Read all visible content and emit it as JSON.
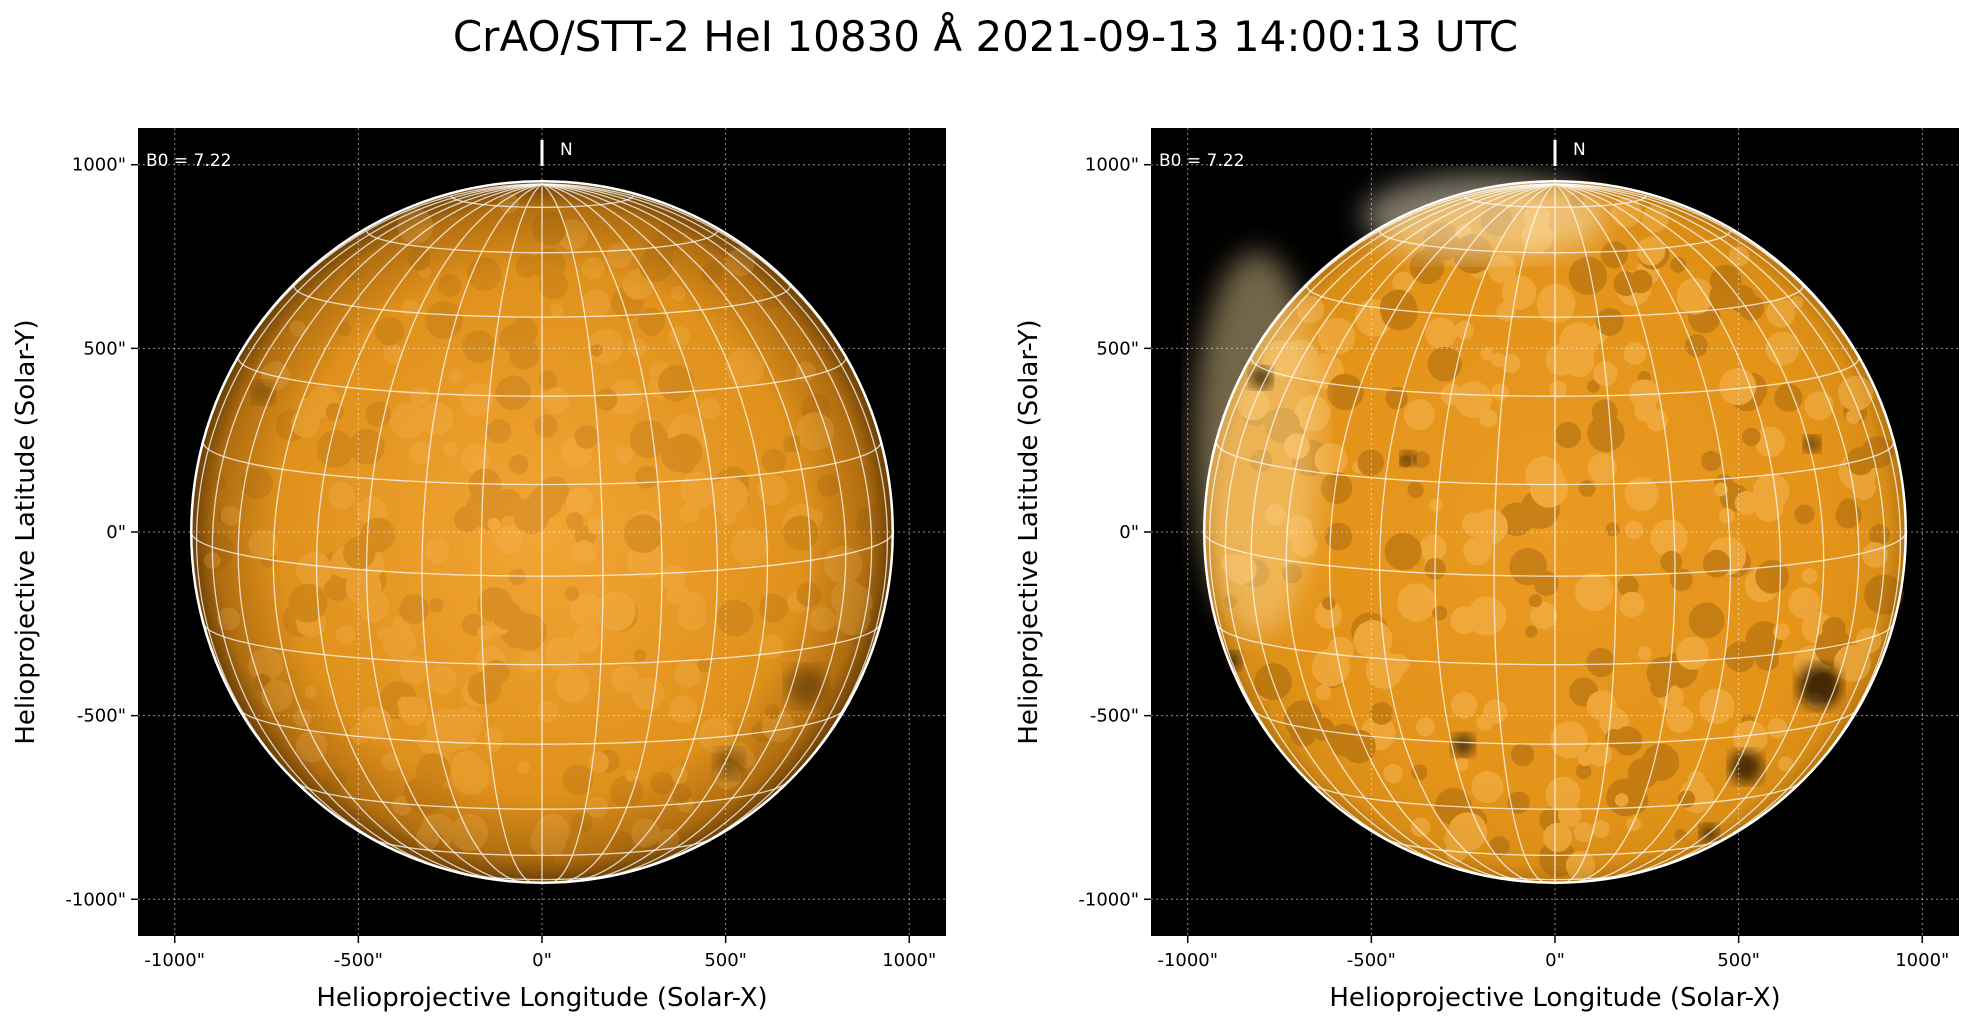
{
  "figure": {
    "title": "CrAO/STT-2 HeI 10830 Å 2021-09-13 14:00:13 UTC"
  },
  "panels": [
    {
      "name": "left",
      "b0_label": "B0 = 7.22",
      "north_label": "N",
      "x_axis_label": "Helioprojective Longitude (Solar-X)",
      "y_axis_label": "Helioprojective Latitude (Solar-Y)",
      "x_ticks": [
        "-1000\"",
        "-500\"",
        "0\"",
        "500\"",
        "1000\""
      ],
      "y_ticks": [
        "1000\"",
        "500\"",
        "0\"",
        "-500\"",
        "-1000\""
      ],
      "disk_color": "#e8991a",
      "dark_features": [
        {
          "x": 720,
          "y": -420,
          "r": 55
        },
        {
          "x": 510,
          "y": -630,
          "r": 40
        },
        {
          "x": -760,
          "y": 380,
          "r": 30
        },
        {
          "x": 680,
          "y": 240,
          "r": 18
        }
      ]
    },
    {
      "name": "right",
      "b0_label": "B0 = 7.22",
      "north_label": "N",
      "x_axis_label": "Helioprojective Longitude (Solar-X)",
      "y_axis_label": "Helioprojective Latitude (Solar-Y)",
      "x_ticks": [
        "-1000\"",
        "-500\"",
        "0\"",
        "500\"",
        "1000\""
      ],
      "y_ticks": [
        "1000\"",
        "500\"",
        "0\"",
        "-500\"",
        "-1000\""
      ],
      "disk_color": "#e49316",
      "dark_features": [
        {
          "x": 720,
          "y": -420,
          "r": 60
        },
        {
          "x": 520,
          "y": -640,
          "r": 45
        },
        {
          "x": -800,
          "y": 420,
          "r": 30
        },
        {
          "x": 700,
          "y": 240,
          "r": 22
        },
        {
          "x": -250,
          "y": -580,
          "r": 30
        },
        {
          "x": 420,
          "y": -820,
          "r": 25
        },
        {
          "x": -400,
          "y": 200,
          "r": 20
        },
        {
          "x": -880,
          "y": -350,
          "r": 25
        }
      ]
    }
  ],
  "axis_range": {
    "x": [
      -1100,
      1100
    ],
    "y": [
      -1100,
      1100
    ]
  },
  "disk_radius_arcsec": 955,
  "colors": {
    "background": "#000000",
    "grid": "#ffffff",
    "limb": "#ffffff"
  }
}
